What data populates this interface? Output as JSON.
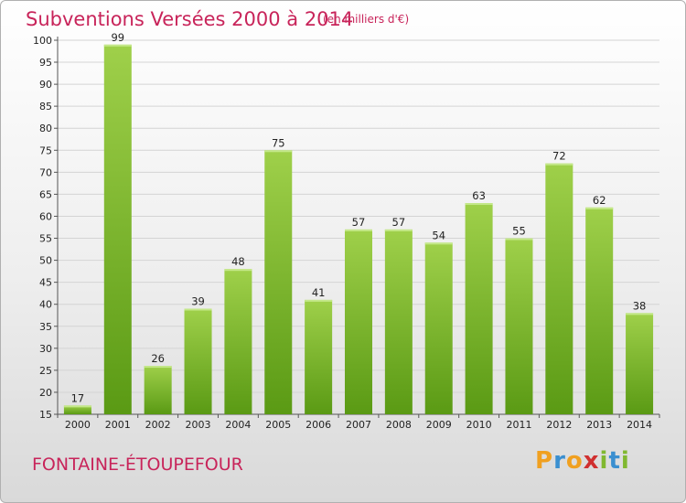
{
  "title": "Subventions Versées 2000 à 2014",
  "subtitle": "(en milliers d'€)",
  "commune": "FONTAINE-ÉTOUPEFOUR",
  "logo": {
    "text": "Proxiti",
    "letters": [
      "P",
      "r",
      "o",
      "x",
      "i",
      "t",
      "i"
    ],
    "colors": [
      "#f0a020",
      "#3a8fd0",
      "#f0a020",
      "#d03030",
      "#80b830",
      "#3a8fd0",
      "#80b830"
    ]
  },
  "colors": {
    "text_accent": "#c8245a",
    "bar_top": "#9fd04a",
    "bar_bottom": "#5a9a14"
  },
  "chart_data": {
    "type": "bar",
    "title": "Subventions Versées 2000 à 2014",
    "subtitle": "(en milliers d'€)",
    "categories": [
      "2000",
      "2001",
      "2002",
      "2003",
      "2004",
      "2005",
      "2006",
      "2007",
      "2008",
      "2009",
      "2010",
      "2011",
      "2012",
      "2013",
      "2014"
    ],
    "values": [
      17,
      99,
      26,
      39,
      48,
      75,
      41,
      57,
      57,
      54,
      63,
      55,
      72,
      62,
      38
    ],
    "ylim": [
      15,
      100
    ],
    "yticks": [
      15,
      20,
      25,
      30,
      35,
      40,
      45,
      50,
      55,
      60,
      65,
      70,
      75,
      80,
      85,
      90,
      95,
      100
    ],
    "grid": true,
    "xlabel": "",
    "ylabel": ""
  }
}
